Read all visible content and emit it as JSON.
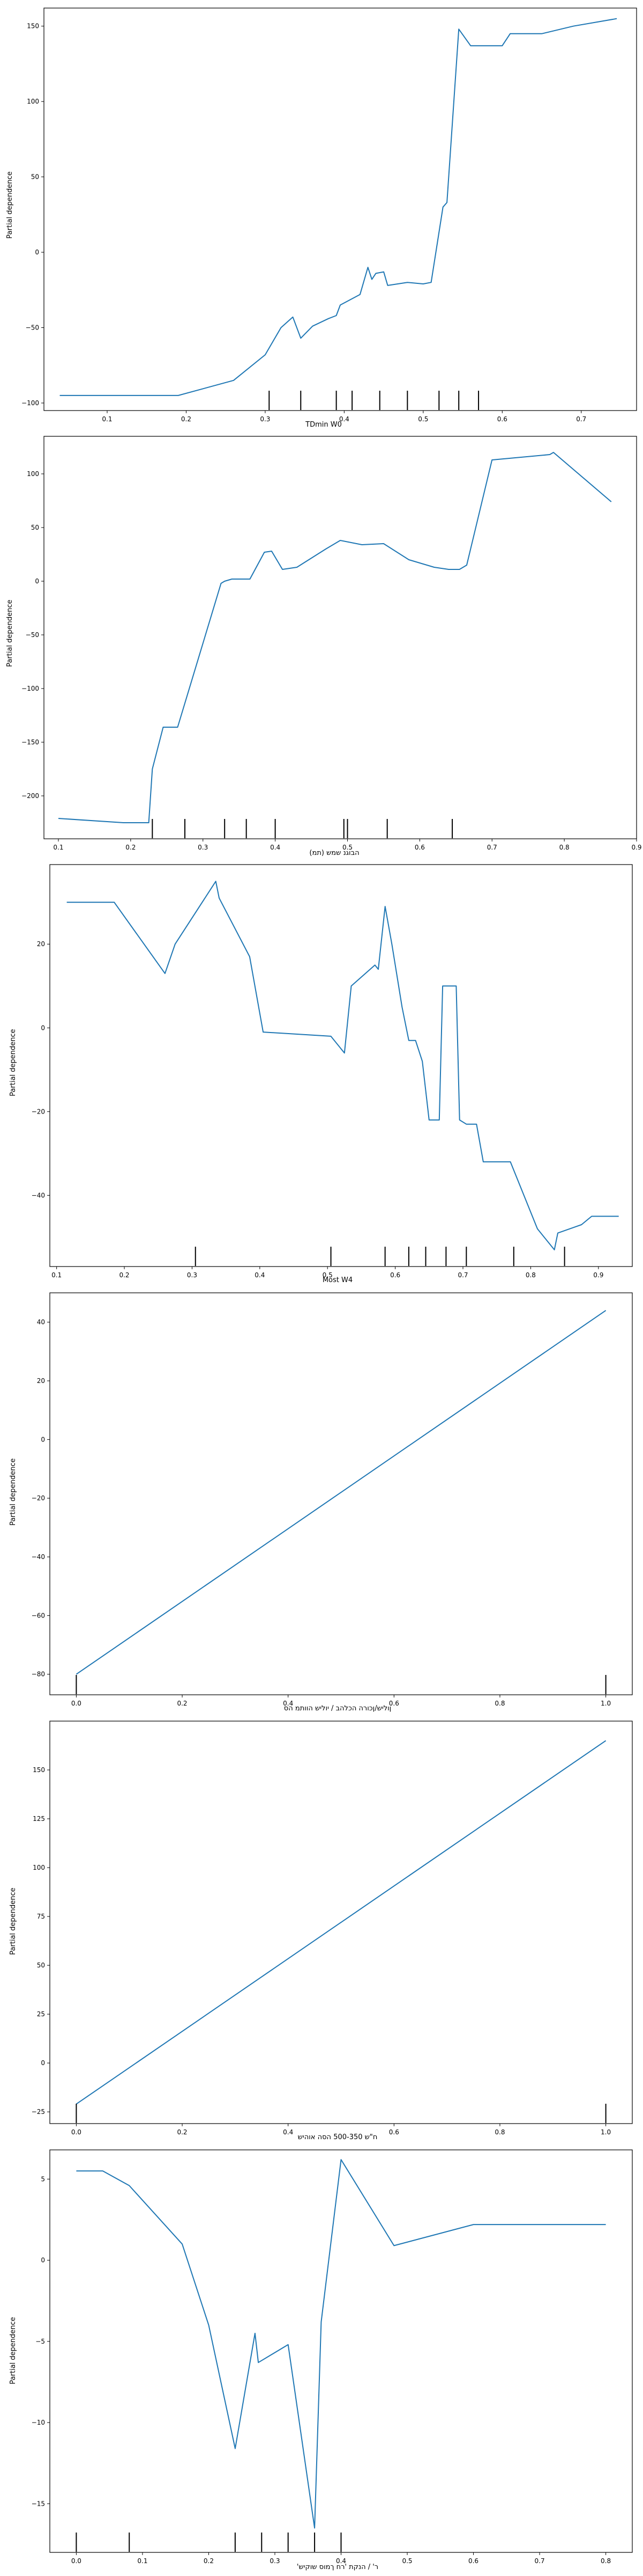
{
  "line_color": "#1f77b4",
  "chart_data": [
    {
      "type": "line",
      "xlabel": "TDmin W0",
      "ylabel": "Partial dependence",
      "xlim": [
        0.02,
        0.77
      ],
      "ylim": [
        -105,
        162
      ],
      "xticks": [
        0.1,
        0.2,
        0.3,
        0.4,
        0.5,
        0.6,
        0.7
      ],
      "yticks": [
        -100,
        -50,
        0,
        50,
        100,
        150
      ],
      "x": [
        0.04,
        0.19,
        0.26,
        0.3,
        0.32,
        0.335,
        0.345,
        0.36,
        0.38,
        0.39,
        0.395,
        0.42,
        0.43,
        0.435,
        0.44,
        0.45,
        0.455,
        0.48,
        0.5,
        0.51,
        0.525,
        0.53,
        0.545,
        0.56,
        0.575,
        0.6,
        0.61,
        0.65,
        0.69,
        0.745
      ],
      "y": [
        -95,
        -95,
        -85,
        -68,
        -50,
        -43,
        -57,
        -49,
        -44,
        -42,
        -35,
        -28,
        -10,
        -18,
        -14,
        -13,
        -22,
        -20,
        -21,
        -20,
        30,
        33,
        148,
        137,
        137,
        137,
        145,
        145,
        150,
        155
      ],
      "rug": [
        0.305,
        0.345,
        0.39,
        0.41,
        0.445,
        0.48,
        0.52,
        0.545,
        0.57
      ]
    },
    {
      "type": "line",
      "xlabel": "(תמ) הבוגנ שמש",
      "ylabel": "Partial dependence",
      "xlim": [
        0.08,
        0.9
      ],
      "ylim": [
        -240,
        135
      ],
      "xticks": [
        0.1,
        0.2,
        0.3,
        0.4,
        0.5,
        0.6,
        0.7,
        0.8,
        0.9
      ],
      "yticks": [
        -200,
        -150,
        -100,
        -50,
        0,
        50,
        100
      ],
      "x": [
        0.1,
        0.19,
        0.225,
        0.23,
        0.245,
        0.265,
        0.325,
        0.33,
        0.34,
        0.365,
        0.385,
        0.395,
        0.41,
        0.43,
        0.47,
        0.49,
        0.52,
        0.55,
        0.585,
        0.62,
        0.64,
        0.655,
        0.665,
        0.7,
        0.78,
        0.785,
        0.865
      ],
      "y": [
        -221,
        -225,
        -225,
        -175,
        -136,
        -136,
        -2,
        0,
        2,
        2,
        27,
        28,
        11,
        13,
        30,
        38,
        34,
        35,
        20,
        13,
        11,
        11,
        15,
        113,
        118,
        120,
        74
      ],
      "rug": [
        0.23,
        0.275,
        0.33,
        0.36,
        0.4,
        0.495,
        0.5,
        0.555,
        0.645
      ]
    },
    {
      "type": "line",
      "xlabel": "Most W4",
      "ylabel": "Partial dependence",
      "xlim": [
        0.09,
        0.95
      ],
      "ylim": [
        -57,
        39
      ],
      "xticks": [
        0.1,
        0.2,
        0.3,
        0.4,
        0.5,
        0.6,
        0.7,
        0.8,
        0.9
      ],
      "yticks": [
        -40,
        -20,
        0,
        20
      ],
      "x": [
        0.115,
        0.185,
        0.26,
        0.275,
        0.335,
        0.34,
        0.385,
        0.405,
        0.505,
        0.525,
        0.535,
        0.57,
        0.575,
        0.585,
        0.595,
        0.61,
        0.62,
        0.63,
        0.64,
        0.65,
        0.665,
        0.67,
        0.69,
        0.695,
        0.705,
        0.72,
        0.73,
        0.77,
        0.81,
        0.835,
        0.84,
        0.875,
        0.89,
        0.93
      ],
      "y": [
        30,
        30,
        13,
        20,
        35,
        31,
        17,
        -1,
        -2,
        -6,
        10,
        15,
        14,
        29,
        20,
        5,
        -3,
        -3,
        -8,
        -22,
        -22,
        10,
        10,
        -22,
        -23,
        -23,
        -32,
        -32,
        -48,
        -53,
        -49,
        -47,
        -45,
        -45
      ],
      "rug": [
        0.305,
        0.505,
        0.585,
        0.62,
        0.645,
        0.675,
        0.705,
        0.775,
        0.85
      ]
    },
    {
      "type": "line",
      "xlabel": "ןוליש/ןכורה הכלהב / יוליש הוותמ הס",
      "ylabel": "Partial dependence",
      "xlim": [
        -0.05,
        1.05
      ],
      "ylim": [
        -87,
        50
      ],
      "xticks": [
        0.0,
        0.2,
        0.4,
        0.6,
        0.8,
        1.0
      ],
      "yticks": [
        -80,
        -60,
        -40,
        -20,
        0,
        20,
        40
      ],
      "x": [
        0.0,
        1.0
      ],
      "y": [
        -80,
        44
      ],
      "rug": [
        0.0,
        1.0
      ]
    },
    {
      "type": "line",
      "xlabel": "ח\"ש 500-350 הסה אוהיש",
      "ylabel": "Partial dependence",
      "xlim": [
        -0.05,
        1.05
      ],
      "ylim": [
        -31,
        175
      ],
      "xticks": [
        0.0,
        0.2,
        0.4,
        0.6,
        0.8,
        1.0
      ],
      "yticks": [
        -25,
        0,
        25,
        50,
        75,
        100,
        125,
        150
      ],
      "x": [
        0.0,
        1.0
      ],
      "y": [
        -21,
        165
      ],
      "rug": [
        0.0,
        1.0
      ]
    },
    {
      "type": "line",
      "xlabel": "'ר' / הנקת 'רח ךמוס שוקיש",
      "ylabel": "Partial dependence",
      "xlim": [
        -0.04,
        0.84
      ],
      "ylim": [
        -18,
        6.8
      ],
      "xticks": [
        0.0,
        0.1,
        0.2,
        0.3,
        0.4,
        0.5,
        0.6,
        0.7,
        0.8
      ],
      "yticks": [
        -15,
        -10,
        -5,
        0,
        5
      ],
      "x": [
        0.0,
        0.04,
        0.08,
        0.16,
        0.2,
        0.24,
        0.27,
        0.275,
        0.32,
        0.36,
        0.37,
        0.4,
        0.48,
        0.6,
        0.8
      ],
      "y": [
        5.5,
        5.5,
        4.6,
        1,
        -4,
        -11.6,
        -4.5,
        -6.3,
        -5.2,
        -16.5,
        -3.8,
        6.2,
        0.9,
        2.2,
        2.2
      ],
      "rug": [
        0.0,
        0.08,
        0.24,
        0.28,
        0.32,
        0.36,
        0.4
      ]
    }
  ]
}
